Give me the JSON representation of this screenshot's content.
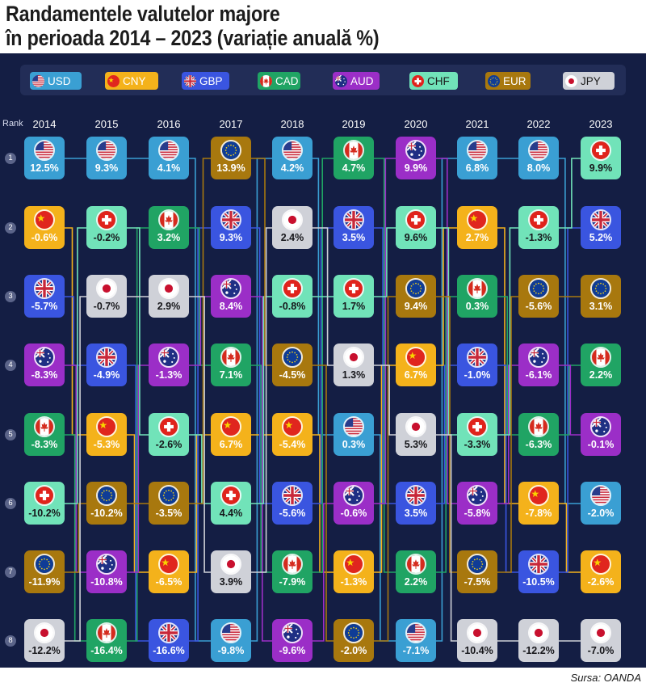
{
  "title_lines": [
    "Randamentele valutelor majore",
    "în perioada 2014 – 2023 (variație anuală %)"
  ],
  "source": "Sursa: OANDA",
  "rank_header": "Rank",
  "legend": [
    {
      "code": "USD",
      "label": "USD",
      "color": "#3a9fd3",
      "flag_icon": "usa-flag-icon"
    },
    {
      "code": "CNY",
      "label": "CNY",
      "color": "#f4b21b",
      "flag_icon": "china-flag-icon"
    },
    {
      "code": "GBP",
      "label": "GBP",
      "color": "#3a55e0",
      "flag_icon": "uk-flag-icon"
    },
    {
      "code": "CAD",
      "label": "CAD",
      "color": "#20a464",
      "flag_icon": "canada-flag-icon"
    },
    {
      "code": "AUD",
      "label": "AUD",
      "color": "#9b2ec7",
      "flag_icon": "australia-flag-icon"
    },
    {
      "code": "CHF",
      "label": "CHF",
      "color": "#71e3b9",
      "flag_icon": "switzerland-flag-icon"
    },
    {
      "code": "EUR",
      "label": "EUR",
      "color": "#a8780e",
      "flag_icon": "eu-flag-icon"
    },
    {
      "code": "JPY",
      "label": "JPY",
      "color": "#cfd1d8",
      "flag_icon": "japan-flag-icon"
    }
  ],
  "chart_data": {
    "type": "table",
    "title": "Randamentele valutelor majore în perioada 2014 – 2023 (variație anuală %)",
    "row_header": "Rank",
    "ranks": [
      "1",
      "2",
      "3",
      "4",
      "5",
      "6",
      "7",
      "8"
    ],
    "years": [
      {
        "year": "2014",
        "ranking": [
          {
            "currency": "USD",
            "value": "12.5%"
          },
          {
            "currency": "CNY",
            "value": "-0.6%"
          },
          {
            "currency": "GBP",
            "value": "-5.7%"
          },
          {
            "currency": "AUD",
            "value": "-8.3%"
          },
          {
            "currency": "CAD",
            "value": "-8.3%"
          },
          {
            "currency": "CHF",
            "value": "-10.2%"
          },
          {
            "currency": "EUR",
            "value": "-11.9%"
          },
          {
            "currency": "JPY",
            "value": "-12.2%"
          }
        ]
      },
      {
        "year": "2015",
        "ranking": [
          {
            "currency": "USD",
            "value": "9.3%"
          },
          {
            "currency": "CHF",
            "value": "-0.2%"
          },
          {
            "currency": "JPY",
            "value": "-0.7%"
          },
          {
            "currency": "GBP",
            "value": "-4.9%"
          },
          {
            "currency": "CNY",
            "value": "-5.3%"
          },
          {
            "currency": "EUR",
            "value": "-10.2%"
          },
          {
            "currency": "AUD",
            "value": "-10.8%"
          },
          {
            "currency": "CAD",
            "value": "-16.4%"
          }
        ]
      },
      {
        "year": "2016",
        "ranking": [
          {
            "currency": "USD",
            "value": "4.1%"
          },
          {
            "currency": "CAD",
            "value": "3.2%"
          },
          {
            "currency": "JPY",
            "value": "2.9%"
          },
          {
            "currency": "AUD",
            "value": "-1.3%"
          },
          {
            "currency": "CHF",
            "value": "-2.6%"
          },
          {
            "currency": "EUR",
            "value": "-3.5%"
          },
          {
            "currency": "CNY",
            "value": "-6.5%"
          },
          {
            "currency": "GBP",
            "value": "-16.6%"
          }
        ]
      },
      {
        "year": "2017",
        "ranking": [
          {
            "currency": "EUR",
            "value": "13.9%"
          },
          {
            "currency": "GBP",
            "value": "9.3%"
          },
          {
            "currency": "AUD",
            "value": "8.4%"
          },
          {
            "currency": "CAD",
            "value": "7.1%"
          },
          {
            "currency": "CNY",
            "value": "6.7%"
          },
          {
            "currency": "CHF",
            "value": "4.4%"
          },
          {
            "currency": "JPY",
            "value": "3.9%"
          },
          {
            "currency": "USD",
            "value": "-9.8%"
          }
        ]
      },
      {
        "year": "2018",
        "ranking": [
          {
            "currency": "USD",
            "value": "4.2%"
          },
          {
            "currency": "JPY",
            "value": "2.4%"
          },
          {
            "currency": "CHF",
            "value": "-0.8%"
          },
          {
            "currency": "EUR",
            "value": "-4.5%"
          },
          {
            "currency": "CNY",
            "value": "-5.4%"
          },
          {
            "currency": "GBP",
            "value": "-5.6%"
          },
          {
            "currency": "CAD",
            "value": "-7.9%"
          },
          {
            "currency": "AUD",
            "value": "-9.6%"
          }
        ]
      },
      {
        "year": "2019",
        "ranking": [
          {
            "currency": "CAD",
            "value": "4.7%"
          },
          {
            "currency": "GBP",
            "value": "3.5%"
          },
          {
            "currency": "CHF",
            "value": "1.7%"
          },
          {
            "currency": "JPY",
            "value": "1.3%"
          },
          {
            "currency": "USD",
            "value": "0.3%"
          },
          {
            "currency": "AUD",
            "value": "-0.6%"
          },
          {
            "currency": "CNY",
            "value": "-1.3%"
          },
          {
            "currency": "EUR",
            "value": "-2.0%"
          }
        ]
      },
      {
        "year": "2020",
        "ranking": [
          {
            "currency": "AUD",
            "value": "9.9%"
          },
          {
            "currency": "CHF",
            "value": "9.6%"
          },
          {
            "currency": "EUR",
            "value": "9.4%"
          },
          {
            "currency": "CNY",
            "value": "6.7%"
          },
          {
            "currency": "JPY",
            "value": "5.3%"
          },
          {
            "currency": "GBP",
            "value": "3.5%"
          },
          {
            "currency": "CAD",
            "value": "2.2%"
          },
          {
            "currency": "USD",
            "value": "-7.1%"
          }
        ]
      },
      {
        "year": "2021",
        "ranking": [
          {
            "currency": "USD",
            "value": "6.8%"
          },
          {
            "currency": "CNY",
            "value": "2.7%"
          },
          {
            "currency": "CAD",
            "value": "0.3%"
          },
          {
            "currency": "GBP",
            "value": "-1.0%"
          },
          {
            "currency": "CHF",
            "value": "-3.3%"
          },
          {
            "currency": "AUD",
            "value": "-5.8%"
          },
          {
            "currency": "EUR",
            "value": "-7.5%"
          },
          {
            "currency": "JPY",
            "value": "-10.4%"
          }
        ]
      },
      {
        "year": "2022",
        "ranking": [
          {
            "currency": "USD",
            "value": "8.0%"
          },
          {
            "currency": "CHF",
            "value": "-1.3%"
          },
          {
            "currency": "EUR",
            "value": "-5.6%"
          },
          {
            "currency": "AUD",
            "value": "-6.1%"
          },
          {
            "currency": "CAD",
            "value": "-6.3%"
          },
          {
            "currency": "CNY",
            "value": "-7.8%"
          },
          {
            "currency": "GBP",
            "value": "-10.5%"
          },
          {
            "currency": "JPY",
            "value": "-12.2%"
          }
        ]
      },
      {
        "year": "2023",
        "ranking": [
          {
            "currency": "CHF",
            "value": "9.9%"
          },
          {
            "currency": "GBP",
            "value": "5.2%"
          },
          {
            "currency": "EUR",
            "value": "3.1%"
          },
          {
            "currency": "CAD",
            "value": "2.2%"
          },
          {
            "currency": "AUD",
            "value": "-0.1%"
          },
          {
            "currency": "USD",
            "value": "-2.0%"
          },
          {
            "currency": "CNY",
            "value": "-2.6%"
          },
          {
            "currency": "JPY",
            "value": "-7.0%"
          }
        ]
      }
    ],
    "grid": false,
    "legend_position": "top"
  }
}
